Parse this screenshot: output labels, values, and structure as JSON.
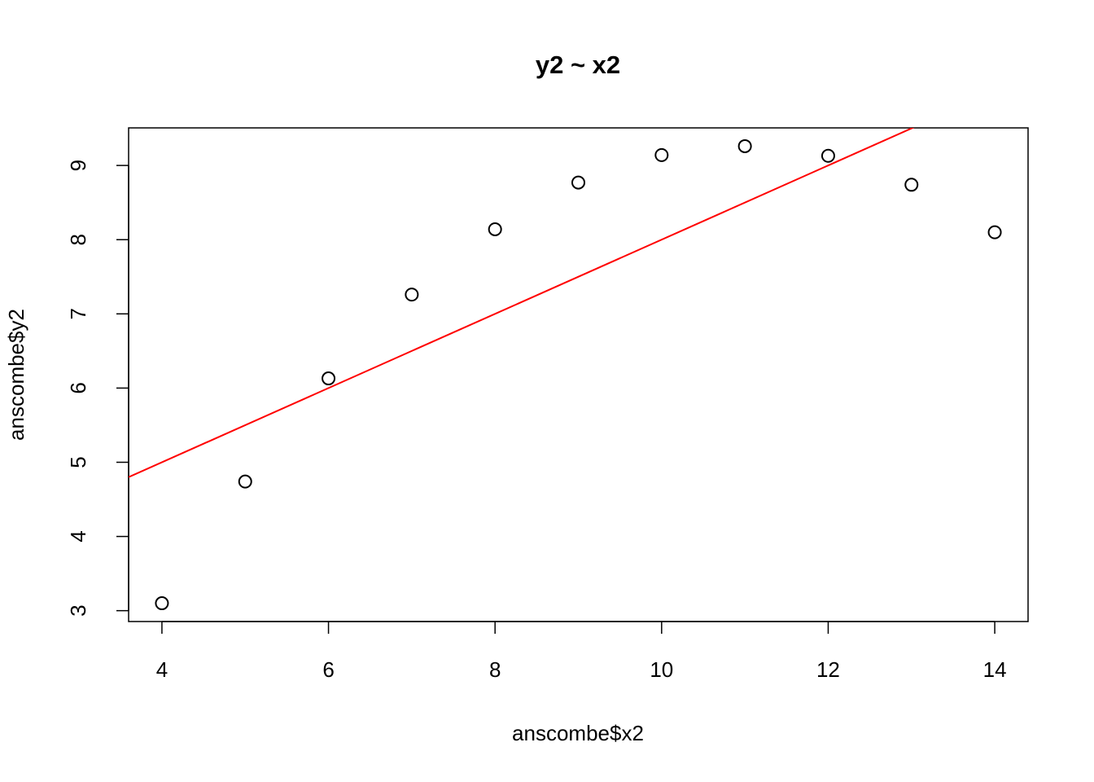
{
  "chart_data": {
    "type": "scatter",
    "title": "y2 ~ x2",
    "xlabel": "anscombe$x2",
    "ylabel": "anscombe$y2",
    "x": [
      10,
      8,
      13,
      9,
      11,
      14,
      6,
      4,
      12,
      7,
      5
    ],
    "values": [
      9.14,
      8.14,
      8.74,
      8.77,
      9.26,
      8.1,
      6.13,
      3.1,
      9.13,
      7.26,
      4.74
    ],
    "color": "#000000",
    "xlim": [
      3.6,
      14.4
    ],
    "xticks": [
      4,
      6,
      8,
      10,
      12,
      14
    ],
    "ylim": [
      2.8536,
      9.5064
    ],
    "yticks": [
      3,
      4,
      5,
      6,
      7,
      8,
      9
    ],
    "fit_line": {
      "intercept": 3.0,
      "slope": 0.5,
      "color": "#ff0000"
    },
    "grid": false
  }
}
